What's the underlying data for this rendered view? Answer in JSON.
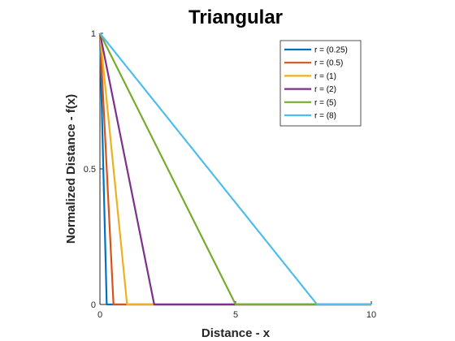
{
  "chart_data": {
    "type": "line",
    "title": "Triangular",
    "xlabel": "Distance - x",
    "ylabel": "Normalized Distance - f(x)",
    "xlim": [
      0,
      10
    ],
    "ylim": [
      0,
      1
    ],
    "xticks": [
      "0",
      "5",
      "10"
    ],
    "yticks": [
      "0",
      "0.5",
      "1"
    ],
    "grid": false,
    "legend_position": "top-right",
    "series": [
      {
        "name": "r = (0.25)",
        "color": "#0072BD",
        "x": [
          0,
          0.25,
          10
        ],
        "y": [
          1,
          0,
          0
        ]
      },
      {
        "name": "r = (0.5)",
        "color": "#D95319",
        "x": [
          0,
          0.5,
          10
        ],
        "y": [
          1,
          0,
          0
        ]
      },
      {
        "name": "r = (1)",
        "color": "#EDB120",
        "x": [
          0,
          1,
          10
        ],
        "y": [
          1,
          0,
          0
        ]
      },
      {
        "name": "r = (2)",
        "color": "#7E2F8E",
        "x": [
          0,
          2,
          10
        ],
        "y": [
          1,
          0,
          0
        ]
      },
      {
        "name": "r = (5)",
        "color": "#77AC30",
        "x": [
          0,
          5,
          10
        ],
        "y": [
          1,
          0,
          0
        ]
      },
      {
        "name": "r = (8)",
        "color": "#4DBEEE",
        "x": [
          0,
          8,
          10
        ],
        "y": [
          1,
          0,
          0
        ]
      }
    ]
  }
}
